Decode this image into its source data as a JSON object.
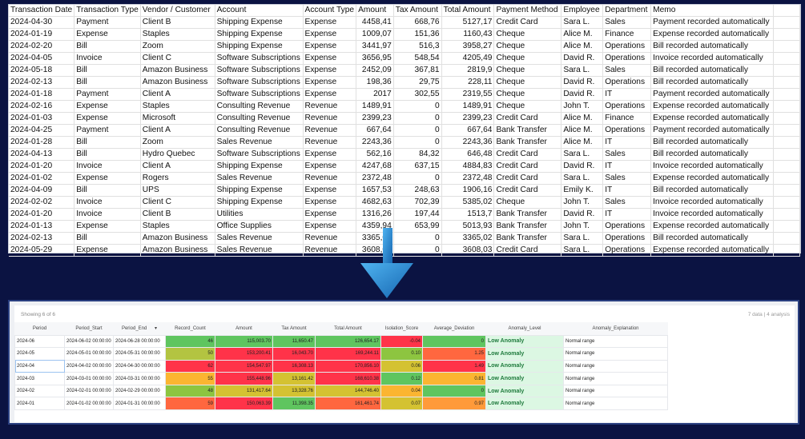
{
  "source_sheet": {
    "columns": [
      "Transaction Date",
      "Transaction Type",
      "Vendor / Customer",
      "Account",
      "Account Type",
      "Amount",
      "Tax Amount",
      "Total Amount",
      "Payment Method",
      "Employee",
      "Department",
      "Memo"
    ],
    "rows": [
      [
        "2024-04-30",
        "Payment",
        "Client B",
        "Shipping Expense",
        "Expense",
        "4458,41",
        "668,76",
        "5127,17",
        "Credit Card",
        "Sara L.",
        "Sales",
        "Payment recorded automatically"
      ],
      [
        "2024-01-19",
        "Expense",
        "Staples",
        "Shipping Expense",
        "Expense",
        "1009,07",
        "151,36",
        "1160,43",
        "Cheque",
        "Alice M.",
        "Finance",
        "Expense recorded automatically"
      ],
      [
        "2024-02-20",
        "Bill",
        "Zoom",
        "Shipping Expense",
        "Expense",
        "3441,97",
        "516,3",
        "3958,27",
        "Cheque",
        "Alice M.",
        "Operations",
        "Bill recorded automatically"
      ],
      [
        "2024-04-05",
        "Invoice",
        "Client C",
        "Software Subscriptions",
        "Expense",
        "3656,95",
        "548,54",
        "4205,49",
        "Cheque",
        "David R.",
        "Operations",
        "Invoice recorded automatically"
      ],
      [
        "2024-05-18",
        "Bill",
        "Amazon Business",
        "Software Subscriptions",
        "Expense",
        "2452,09",
        "367,81",
        "2819,9",
        "Cheque",
        "Sara L.",
        "Sales",
        "Bill recorded automatically"
      ],
      [
        "2024-02-13",
        "Bill",
        "Amazon Business",
        "Software Subscriptions",
        "Expense",
        "198,36",
        "29,75",
        "228,11",
        "Cheque",
        "David R.",
        "Operations",
        "Bill recorded automatically"
      ],
      [
        "2024-01-18",
        "Payment",
        "Client A",
        "Software Subscriptions",
        "Expense",
        "2017",
        "302,55",
        "2319,55",
        "Cheque",
        "David R.",
        "IT",
        "Payment recorded automatically"
      ],
      [
        "2024-02-16",
        "Expense",
        "Staples",
        "Consulting Revenue",
        "Revenue",
        "1489,91",
        "0",
        "1489,91",
        "Cheque",
        "John T.",
        "Operations",
        "Expense recorded automatically"
      ],
      [
        "2024-01-03",
        "Expense",
        "Microsoft",
        "Consulting Revenue",
        "Revenue",
        "2399,23",
        "0",
        "2399,23",
        "Credit Card",
        "Alice M.",
        "Finance",
        "Expense recorded automatically"
      ],
      [
        "2024-04-25",
        "Payment",
        "Client A",
        "Consulting Revenue",
        "Revenue",
        "667,64",
        "0",
        "667,64",
        "Bank Transfer",
        "Alice M.",
        "Operations",
        "Payment recorded automatically"
      ],
      [
        "2024-01-28",
        "Bill",
        "Zoom",
        "Sales Revenue",
        "Revenue",
        "2243,36",
        "0",
        "2243,36",
        "Bank Transfer",
        "Alice M.",
        "IT",
        "Bill recorded automatically"
      ],
      [
        "2024-04-13",
        "Bill",
        "Hydro Quebec",
        "Software Subscriptions",
        "Expense",
        "562,16",
        "84,32",
        "646,48",
        "Credit Card",
        "Sara L.",
        "Sales",
        "Bill recorded automatically"
      ],
      [
        "2024-01-20",
        "Invoice",
        "Client A",
        "Shipping Expense",
        "Expense",
        "4247,68",
        "637,15",
        "4884,83",
        "Credit Card",
        "David R.",
        "IT",
        "Invoice recorded automatically"
      ],
      [
        "2024-01-02",
        "Expense",
        "Rogers",
        "Sales Revenue",
        "Revenue",
        "2372,48",
        "0",
        "2372,48",
        "Credit Card",
        "Sara L.",
        "Sales",
        "Expense recorded automatically"
      ],
      [
        "2024-04-09",
        "Bill",
        "UPS",
        "Shipping Expense",
        "Expense",
        "1657,53",
        "248,63",
        "1906,16",
        "Credit Card",
        "Emily K.",
        "IT",
        "Bill recorded automatically"
      ],
      [
        "2024-02-02",
        "Invoice",
        "Client C",
        "Shipping Expense",
        "Expense",
        "4682,63",
        "702,39",
        "5385,02",
        "Cheque",
        "John T.",
        "Sales",
        "Invoice recorded automatically"
      ],
      [
        "2024-01-20",
        "Invoice",
        "Client B",
        "Utilities",
        "Expense",
        "1316,26",
        "197,44",
        "1513,7",
        "Bank Transfer",
        "David R.",
        "IT",
        "Invoice recorded automatically"
      ],
      [
        "2024-01-13",
        "Expense",
        "Staples",
        "Office Supplies",
        "Expense",
        "4359,94",
        "653,99",
        "5013,93",
        "Bank Transfer",
        "John T.",
        "Operations",
        "Expense recorded automatically"
      ],
      [
        "2024-02-13",
        "Bill",
        "Amazon Business",
        "Sales Revenue",
        "Revenue",
        "3365,02",
        "0",
        "3365,02",
        "Bank Transfer",
        "Sara L.",
        "Operations",
        "Bill recorded automatically"
      ],
      [
        "2024-05-29",
        "Expense",
        "Amazon Business",
        "Sales Revenue",
        "Revenue",
        "3608,03",
        "0",
        "3608,03",
        "Credit Card",
        "Sara L.",
        "Operations",
        "Expense recorded automatically"
      ]
    ]
  },
  "arrow": {
    "icon": "arrow-down-icon",
    "color": "#2a8fd6"
  },
  "analysis": {
    "showing": "Showing 6 of 6",
    "meta": "7 data | 4 analysis",
    "sort_icon": "sort-desc-icon",
    "columns": [
      "Period",
      "Period_Start",
      "Period_End",
      "Record_Count",
      "Amount",
      "Tax Amount",
      "Total Amount",
      "Isolation_Score",
      "Average_Deviation",
      "Anomaly_Level",
      "Anomaly_Explanation"
    ],
    "colors": {
      "green": "#5fc55f",
      "lightgreen": "#8dc540",
      "yellowgreen": "#b3c441",
      "olive": "#d4c232",
      "amber": "#fbb531",
      "orange": "#ff9a3a",
      "redorange": "#ff673f",
      "red": "#ff3349"
    },
    "rows": [
      {
        "cells": [
          "2024-06",
          "2024-06-02 00:00:00",
          "2024-06-28 00:00:00",
          "46",
          "115,003.70",
          "11,650.47",
          "126,654.17",
          "-0.04",
          "0",
          "Low Anomaly",
          "Normal range"
        ],
        "heat": [
          "green",
          "green",
          "green",
          "green",
          "red",
          "green"
        ]
      },
      {
        "cells": [
          "2024-05",
          "2024-05-01 00:00:00",
          "2024-05-31 00:00:00",
          "50",
          "153,200.41",
          "16,043.70",
          "169,244.11",
          "0.10",
          "1.25",
          "Low Anomaly",
          "Normal range"
        ],
        "heat": [
          "yellowgreen",
          "red",
          "red",
          "red",
          "lightgreen",
          "redorange"
        ]
      },
      {
        "cells": [
          "2024-04",
          "2024-04-02 00:00:00",
          "2024-04-30 00:00:00",
          "62",
          "154,547.97",
          "16,308.13",
          "170,856.10",
          "0.06",
          "1.49",
          "Low Anomaly",
          "Normal range"
        ],
        "heat": [
          "red",
          "red",
          "red",
          "red",
          "olive",
          "red"
        ]
      },
      {
        "cells": [
          "2024-03",
          "2024-03-01 00:00:00",
          "2024-03-31 00:00:00",
          "55",
          "155,448.96",
          "13,161.42",
          "168,610.38",
          "0.12",
          "0.81",
          "Low Anomaly",
          "Normal range"
        ],
        "heat": [
          "amber",
          "red",
          "olive",
          "red",
          "green",
          "amber"
        ]
      },
      {
        "cells": [
          "2024-02",
          "2024-02-01 00:00:00",
          "2024-02-29 00:00:00",
          "48",
          "131,417.64",
          "13,328.76",
          "144,746.40",
          "0.04",
          "0",
          "Low Anomaly",
          "Normal range"
        ],
        "heat": [
          "lightgreen",
          "olive",
          "olive",
          "olive",
          "amber",
          "green"
        ]
      },
      {
        "cells": [
          "2024-01",
          "2024-01-02 00:00:00",
          "2024-01-31 00:00:00",
          "59",
          "150,063.39",
          "11,398.35",
          "161,461.74",
          "0.07",
          "0.97",
          "Low Anomaly",
          "Normal range"
        ],
        "heat": [
          "redorange",
          "red",
          "green",
          "redorange",
          "olive",
          "orange"
        ]
      }
    ]
  }
}
